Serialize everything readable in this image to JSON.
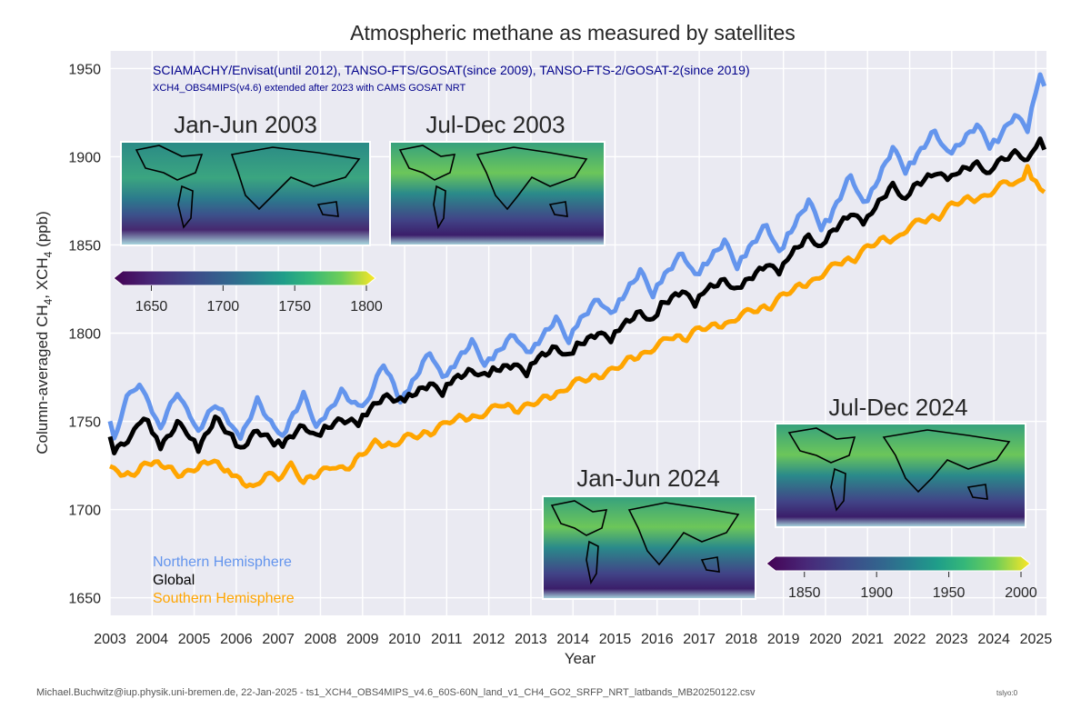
{
  "chart_data": {
    "type": "line",
    "title": "Atmospheric methane as measured by satellites",
    "subtitle": "SCIAMACHY/Envisat(until 2012), TANSO-FTS/GOSAT(since 2009), TANSO-FTS-2/GOSAT-2(since 2019)",
    "subtitle2": "XCH4_OBS4MIPS(v4.6) extended after 2023 with CAMS GOSAT NRT",
    "xlabel": "Year",
    "ylabel_prefix": "Column-averaged CH",
    "ylabel_mid": ", XCH",
    "ylabel_sub": "4",
    "ylabel_suffix": " (ppb)",
    "xlim": [
      2003,
      2025
    ],
    "ylim": [
      1640,
      1960
    ],
    "xticks": [
      2003,
      2004,
      2005,
      2006,
      2007,
      2008,
      2009,
      2010,
      2011,
      2012,
      2013,
      2014,
      2015,
      2016,
      2017,
      2018,
      2019,
      2020,
      2021,
      2022,
      2023,
      2024,
      2025
    ],
    "yticks": [
      1650,
      1700,
      1750,
      1800,
      1850,
      1900,
      1950
    ],
    "grid": true,
    "legend_position": "bottom-left",
    "series": [
      {
        "name": "Northern Hemisphere",
        "color": "#6495ed",
        "anchors": [
          [
            2003.0,
            1750
          ],
          [
            2003.1,
            1741
          ],
          [
            2003.4,
            1763
          ],
          [
            2003.7,
            1772
          ],
          [
            2004.0,
            1755
          ],
          [
            2004.2,
            1747
          ],
          [
            2004.6,
            1767
          ],
          [
            2004.9,
            1752
          ],
          [
            2005.1,
            1745
          ],
          [
            2005.5,
            1760
          ],
          [
            2005.9,
            1748
          ],
          [
            2006.1,
            1740
          ],
          [
            2006.5,
            1762
          ],
          [
            2006.9,
            1746
          ],
          [
            2007.1,
            1742
          ],
          [
            2007.6,
            1765
          ],
          [
            2007.9,
            1748
          ],
          [
            2008.1,
            1752
          ],
          [
            2008.5,
            1767
          ],
          [
            2008.9,
            1758
          ],
          [
            2009.1,
            1761
          ],
          [
            2009.5,
            1783
          ],
          [
            2009.9,
            1762
          ],
          [
            2010.1,
            1768
          ],
          [
            2010.6,
            1790
          ],
          [
            2010.9,
            1774
          ],
          [
            2011.1,
            1780
          ],
          [
            2011.6,
            1795
          ],
          [
            2011.9,
            1783
          ],
          [
            2012.1,
            1786
          ],
          [
            2012.6,
            1800
          ],
          [
            2012.9,
            1788
          ],
          [
            2013.1,
            1793
          ],
          [
            2013.6,
            1808
          ],
          [
            2013.9,
            1796
          ],
          [
            2014.1,
            1805
          ],
          [
            2014.6,
            1820
          ],
          [
            2014.9,
            1810
          ],
          [
            2015.1,
            1818
          ],
          [
            2015.6,
            1835
          ],
          [
            2015.9,
            1822
          ],
          [
            2016.1,
            1830
          ],
          [
            2016.6,
            1846
          ],
          [
            2016.9,
            1832
          ],
          [
            2017.1,
            1838
          ],
          [
            2017.6,
            1852
          ],
          [
            2017.9,
            1838
          ],
          [
            2018.1,
            1845
          ],
          [
            2018.6,
            1862
          ],
          [
            2018.9,
            1845
          ],
          [
            2019.1,
            1855
          ],
          [
            2019.6,
            1875
          ],
          [
            2019.9,
            1860
          ],
          [
            2020.1,
            1865
          ],
          [
            2020.6,
            1890
          ],
          [
            2020.9,
            1873
          ],
          [
            2021.1,
            1880
          ],
          [
            2021.6,
            1905
          ],
          [
            2021.9,
            1892
          ],
          [
            2022.1,
            1898
          ],
          [
            2022.6,
            1915
          ],
          [
            2022.9,
            1902
          ],
          [
            2023.1,
            1905
          ],
          [
            2023.6,
            1918
          ],
          [
            2023.9,
            1906
          ],
          [
            2024.1,
            1910
          ],
          [
            2024.5,
            1924
          ],
          [
            2024.8,
            1915
          ],
          [
            2025.0,
            1938
          ],
          [
            2025.1,
            1945
          ],
          [
            2025.2,
            1940
          ]
        ]
      },
      {
        "name": "Global",
        "color": "#000000",
        "anchors": [
          [
            2003.0,
            1740
          ],
          [
            2003.1,
            1733
          ],
          [
            2003.5,
            1741
          ],
          [
            2003.8,
            1753
          ],
          [
            2004.0,
            1745
          ],
          [
            2004.2,
            1735
          ],
          [
            2004.6,
            1749
          ],
          [
            2004.9,
            1742
          ],
          [
            2005.1,
            1734
          ],
          [
            2005.5,
            1752
          ],
          [
            2005.9,
            1741
          ],
          [
            2006.1,
            1734
          ],
          [
            2006.5,
            1745
          ],
          [
            2006.9,
            1738
          ],
          [
            2007.1,
            1737
          ],
          [
            2007.6,
            1748
          ],
          [
            2007.9,
            1741
          ],
          [
            2008.1,
            1746
          ],
          [
            2008.5,
            1751
          ],
          [
            2008.9,
            1749
          ],
          [
            2009.1,
            1755
          ],
          [
            2009.5,
            1764
          ],
          [
            2009.9,
            1762
          ],
          [
            2010.1,
            1764
          ],
          [
            2010.6,
            1771
          ],
          [
            2010.9,
            1766
          ],
          [
            2011.1,
            1773
          ],
          [
            2011.6,
            1779
          ],
          [
            2011.9,
            1776
          ],
          [
            2012.1,
            1779
          ],
          [
            2012.6,
            1782
          ],
          [
            2012.9,
            1777
          ],
          [
            2013.1,
            1785
          ],
          [
            2013.6,
            1792
          ],
          [
            2013.9,
            1787
          ],
          [
            2014.1,
            1793
          ],
          [
            2014.6,
            1800
          ],
          [
            2014.9,
            1796
          ],
          [
            2015.1,
            1803
          ],
          [
            2015.6,
            1812
          ],
          [
            2015.9,
            1807
          ],
          [
            2016.1,
            1816
          ],
          [
            2016.6,
            1824
          ],
          [
            2016.9,
            1816
          ],
          [
            2017.1,
            1824
          ],
          [
            2017.6,
            1830
          ],
          [
            2017.9,
            1825
          ],
          [
            2018.1,
            1829
          ],
          [
            2018.6,
            1839
          ],
          [
            2018.9,
            1834
          ],
          [
            2019.1,
            1843
          ],
          [
            2019.6,
            1855
          ],
          [
            2019.9,
            1849
          ],
          [
            2020.1,
            1856
          ],
          [
            2020.6,
            1868
          ],
          [
            2020.9,
            1862
          ],
          [
            2021.1,
            1869
          ],
          [
            2021.6,
            1884
          ],
          [
            2021.9,
            1876
          ],
          [
            2022.1,
            1883
          ],
          [
            2022.6,
            1891
          ],
          [
            2022.9,
            1887
          ],
          [
            2023.1,
            1891
          ],
          [
            2023.6,
            1896
          ],
          [
            2023.9,
            1891
          ],
          [
            2024.1,
            1897
          ],
          [
            2024.5,
            1902
          ],
          [
            2024.8,
            1899
          ],
          [
            2025.0,
            1905
          ],
          [
            2025.1,
            1911
          ],
          [
            2025.2,
            1904
          ]
        ]
      },
      {
        "name": "Southern Hemisphere",
        "color": "#ffa500",
        "anchors": [
          [
            2003.0,
            1726
          ],
          [
            2003.1,
            1722
          ],
          [
            2003.5,
            1719
          ],
          [
            2003.9,
            1727
          ],
          [
            2004.3,
            1725
          ],
          [
            2004.7,
            1719
          ],
          [
            2005.0,
            1723
          ],
          [
            2005.4,
            1728
          ],
          [
            2005.8,
            1722
          ],
          [
            2006.0,
            1718
          ],
          [
            2006.4,
            1712
          ],
          [
            2006.7,
            1720
          ],
          [
            2007.0,
            1718
          ],
          [
            2007.3,
            1725
          ],
          [
            2007.6,
            1716
          ],
          [
            2008.0,
            1721
          ],
          [
            2008.3,
            1725
          ],
          [
            2008.6,
            1722
          ],
          [
            2009.0,
            1732
          ],
          [
            2009.3,
            1738
          ],
          [
            2009.7,
            1736
          ],
          [
            2010.0,
            1741
          ],
          [
            2010.3,
            1742
          ],
          [
            2010.7,
            1744
          ],
          [
            2011.0,
            1750
          ],
          [
            2011.3,
            1752
          ],
          [
            2011.7,
            1752
          ],
          [
            2012.0,
            1756
          ],
          [
            2012.3,
            1760
          ],
          [
            2012.7,
            1756
          ],
          [
            2013.0,
            1760
          ],
          [
            2013.3,
            1763
          ],
          [
            2013.7,
            1766
          ],
          [
            2014.0,
            1772
          ],
          [
            2014.3,
            1774
          ],
          [
            2014.7,
            1776
          ],
          [
            2015.0,
            1780
          ],
          [
            2015.3,
            1785
          ],
          [
            2015.7,
            1788
          ],
          [
            2016.0,
            1793
          ],
          [
            2016.3,
            1798
          ],
          [
            2016.7,
            1797
          ],
          [
            2017.0,
            1803
          ],
          [
            2017.3,
            1804
          ],
          [
            2017.7,
            1805
          ],
          [
            2018.0,
            1811
          ],
          [
            2018.3,
            1813
          ],
          [
            2018.7,
            1815
          ],
          [
            2019.0,
            1822
          ],
          [
            2019.3,
            1826
          ],
          [
            2019.7,
            1829
          ],
          [
            2020.0,
            1835
          ],
          [
            2020.3,
            1840
          ],
          [
            2020.7,
            1842
          ],
          [
            2021.0,
            1849
          ],
          [
            2021.3,
            1853
          ],
          [
            2021.7,
            1853
          ],
          [
            2022.0,
            1861
          ],
          [
            2022.3,
            1864
          ],
          [
            2022.7,
            1866
          ],
          [
            2023.0,
            1873
          ],
          [
            2023.3,
            1876
          ],
          [
            2023.7,
            1876
          ],
          [
            2024.0,
            1881
          ],
          [
            2024.3,
            1886
          ],
          [
            2024.6,
            1885
          ],
          [
            2024.8,
            1893
          ],
          [
            2025.0,
            1885
          ],
          [
            2025.2,
            1880
          ]
        ]
      }
    ],
    "colorbars": [
      {
        "ticks": [
          "1650",
          "1700",
          "1750",
          "1800"
        ],
        "range": [
          1630,
          1800
        ]
      },
      {
        "ticks": [
          "1850",
          "1900",
          "1950",
          "2000"
        ],
        "range": [
          1830,
          2000
        ]
      }
    ]
  },
  "maps": [
    {
      "label": "Jan-Jun 2003"
    },
    {
      "label": "Jul-Dec 2003"
    },
    {
      "label": "Jan-Jun 2024"
    },
    {
      "label": "Jul-Dec 2024"
    }
  ],
  "footer": {
    "credit": "Michael.Buchwitz@iup.physik.uni-bremen.de, 22-Jan-2025 - ts1_XCH4_OBS4MIPS_v4.6_60S-60N_land_v1_CH4_GO2_SRFP_NRT_latbands_MB20250122.csv",
    "code": "tslyo:0"
  }
}
